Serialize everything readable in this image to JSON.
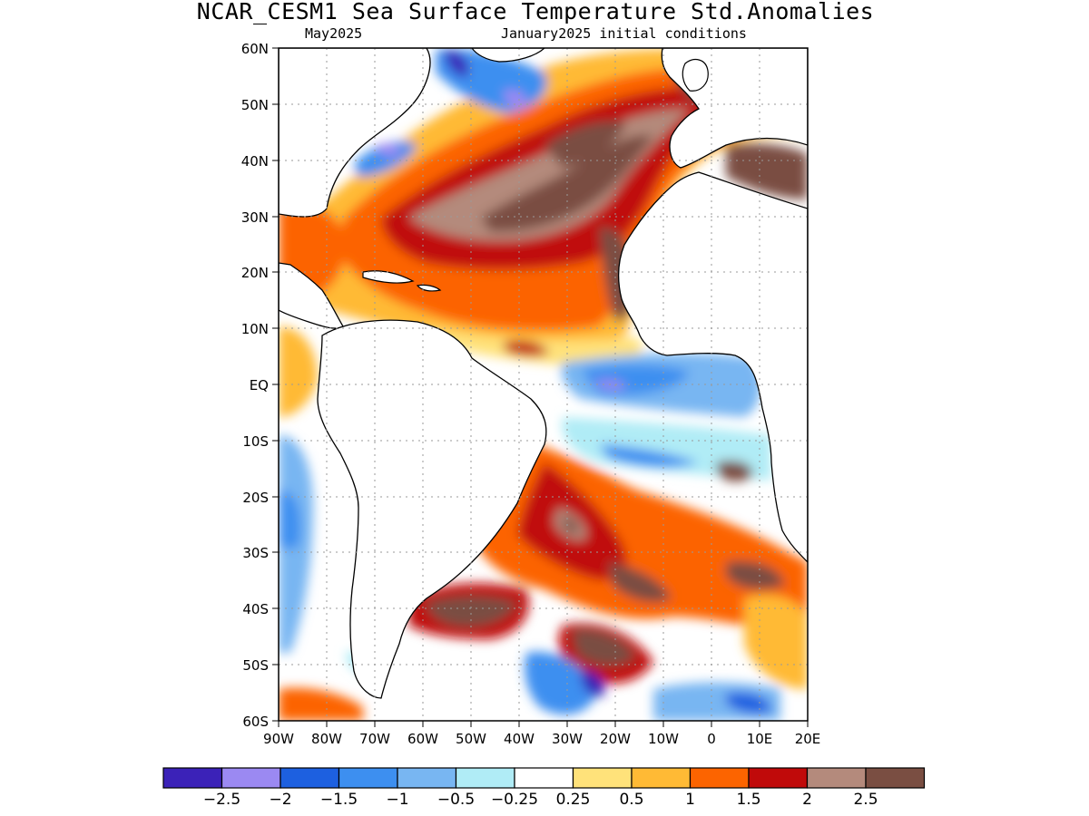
{
  "title": "NCAR_CESM1 Sea Surface Temperature Std.Anomalies",
  "subtitle_left": "May2025",
  "subtitle_right": "January2025 initial conditions",
  "map": {
    "lon_range": [
      -90,
      20
    ],
    "lat_range": [
      -60,
      60
    ],
    "lat_ticks": [
      "60N",
      "50N",
      "40N",
      "30N",
      "20N",
      "10N",
      "EQ",
      "10S",
      "20S",
      "30S",
      "40S",
      "50S",
      "60S"
    ],
    "lon_ticks": [
      "90W",
      "80W",
      "70W",
      "60W",
      "50W",
      "40W",
      "30W",
      "20W",
      "10W",
      "0",
      "10E",
      "20E"
    ],
    "gridlines": true,
    "land_color": "#ffffff",
    "coastline_color": "#000000"
  },
  "colorbar": {
    "colors": [
      "#3b22b8",
      "#9b89f2",
      "#1d60e0",
      "#3d8ff0",
      "#78b6f2",
      "#b0ecf6",
      "#ffffff",
      "#ffe27a",
      "#ffba35",
      "#fc6400",
      "#c00a0a",
      "#b48a7c",
      "#7a4e42"
    ],
    "labels": [
      "-2.5",
      "-2",
      "-1.5",
      "-1",
      "-0.5",
      "-0.25",
      "0.25",
      "0.5",
      "1",
      "1.5",
      "2",
      "2.5"
    ]
  }
}
